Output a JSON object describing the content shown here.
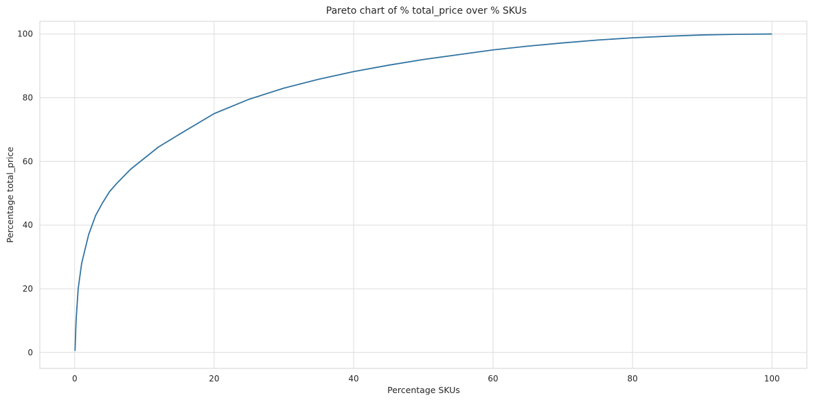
{
  "chart_data": {
    "type": "line",
    "title": "Pareto chart of % total_price over % SKUs",
    "xlabel": "Percentage SKUs",
    "ylabel": "Percentage total_price",
    "xlim": [
      -5,
      105
    ],
    "ylim": [
      -5,
      104
    ],
    "xticks": [
      "0",
      "20",
      "40",
      "60",
      "80",
      "100"
    ],
    "yticks": [
      "0",
      "20",
      "40",
      "60",
      "80",
      "100"
    ],
    "grid": true,
    "series": [
      {
        "color": "#3274a1",
        "x": [
          0.05,
          0.2,
          0.5,
          1,
          2,
          3,
          4,
          5,
          6,
          8,
          10,
          12,
          15,
          20,
          25,
          30,
          35,
          40,
          45,
          50,
          55,
          60,
          65,
          70,
          75,
          80,
          85,
          90,
          95,
          100
        ],
        "y": [
          0.5,
          10,
          20,
          28,
          37,
          43,
          47,
          50.5,
          53,
          57.5,
          61,
          64.5,
          68.5,
          75,
          79.5,
          83,
          85.8,
          88.2,
          90.2,
          92,
          93.5,
          95,
          96.2,
          97.2,
          98.1,
          98.8,
          99.3,
          99.7,
          99.9,
          100
        ]
      }
    ]
  }
}
